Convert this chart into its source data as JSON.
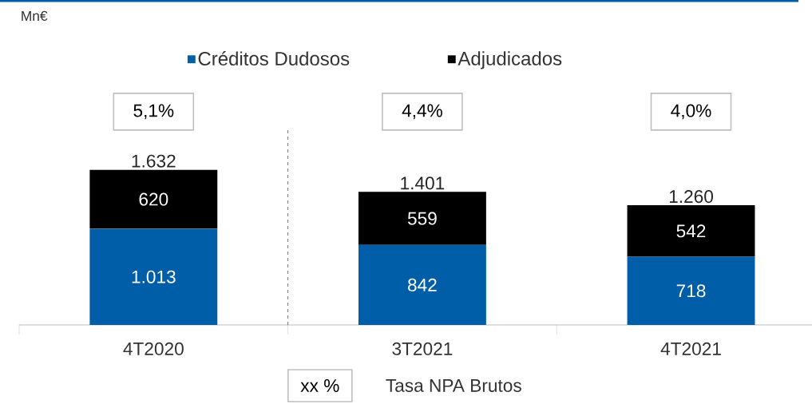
{
  "chart_data": {
    "type": "bar",
    "stacked": true,
    "categories": [
      "4T2020",
      "3T2021",
      "4T2021"
    ],
    "series": [
      {
        "name": "Créditos Dudosos",
        "color": "#005ea8",
        "values": [
          1013,
          842,
          718
        ],
        "value_labels": [
          "1.013",
          "842",
          "718"
        ]
      },
      {
        "name": "Adjudicados",
        "color": "#000000",
        "values": [
          620,
          559,
          542
        ],
        "value_labels": [
          "620",
          "559",
          "542"
        ]
      }
    ],
    "totals": [
      "1.632",
      "1.401",
      "1.260"
    ],
    "legend": "top",
    "annotations": [
      "Mn€",
      "5,1%",
      "4,4%",
      "4,0%",
      "xx %",
      "Tasa NPA Brutos"
    ]
  }
}
